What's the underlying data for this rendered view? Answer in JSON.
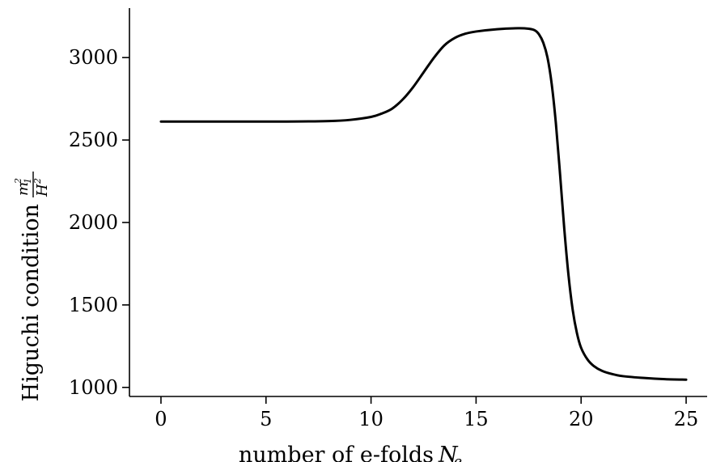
{
  "chart_data": {
    "type": "line",
    "title": "",
    "xlabel": "number of e-folds",
    "xlabel_symbol": "N",
    "xlabel_symbol_subscript": "e",
    "ylabel": "Higuchi condition",
    "ylabel_fraction_numerator": "m",
    "ylabel_fraction_numerator_superscript": "2",
    "ylabel_fraction_numerator_subscript": "1",
    "ylabel_fraction_denominator": "H",
    "ylabel_fraction_denominator_superscript": "2",
    "xlim": [
      -1.5,
      26
    ],
    "ylim": [
      945,
      3300
    ],
    "xticks": [
      0,
      5,
      10,
      15,
      20,
      25
    ],
    "yticks": [
      1000,
      1500,
      2000,
      2500,
      3000
    ],
    "grid": false,
    "series": [
      {
        "color": "#000000",
        "x": [
          0,
          2,
          4,
          6,
          8,
          9,
          10,
          10.5,
          11,
          11.5,
          12,
          12.5,
          13,
          13.5,
          14,
          14.5,
          15,
          16,
          17,
          17.5,
          17.8,
          18.0,
          18.2,
          18.4,
          18.6,
          18.8,
          19.0,
          19.2,
          19.4,
          19.6,
          19.8,
          20.0,
          20.3,
          20.6,
          21,
          21.5,
          22,
          23,
          24,
          25
        ],
        "y": [
          2612,
          2612,
          2612,
          2612,
          2615,
          2622,
          2640,
          2660,
          2690,
          2745,
          2820,
          2910,
          3000,
          3075,
          3120,
          3145,
          3158,
          3172,
          3178,
          3175,
          3165,
          3140,
          3090,
          3000,
          2840,
          2600,
          2290,
          1960,
          1680,
          1470,
          1330,
          1240,
          1170,
          1130,
          1100,
          1080,
          1068,
          1057,
          1050,
          1047
        ]
      }
    ]
  }
}
